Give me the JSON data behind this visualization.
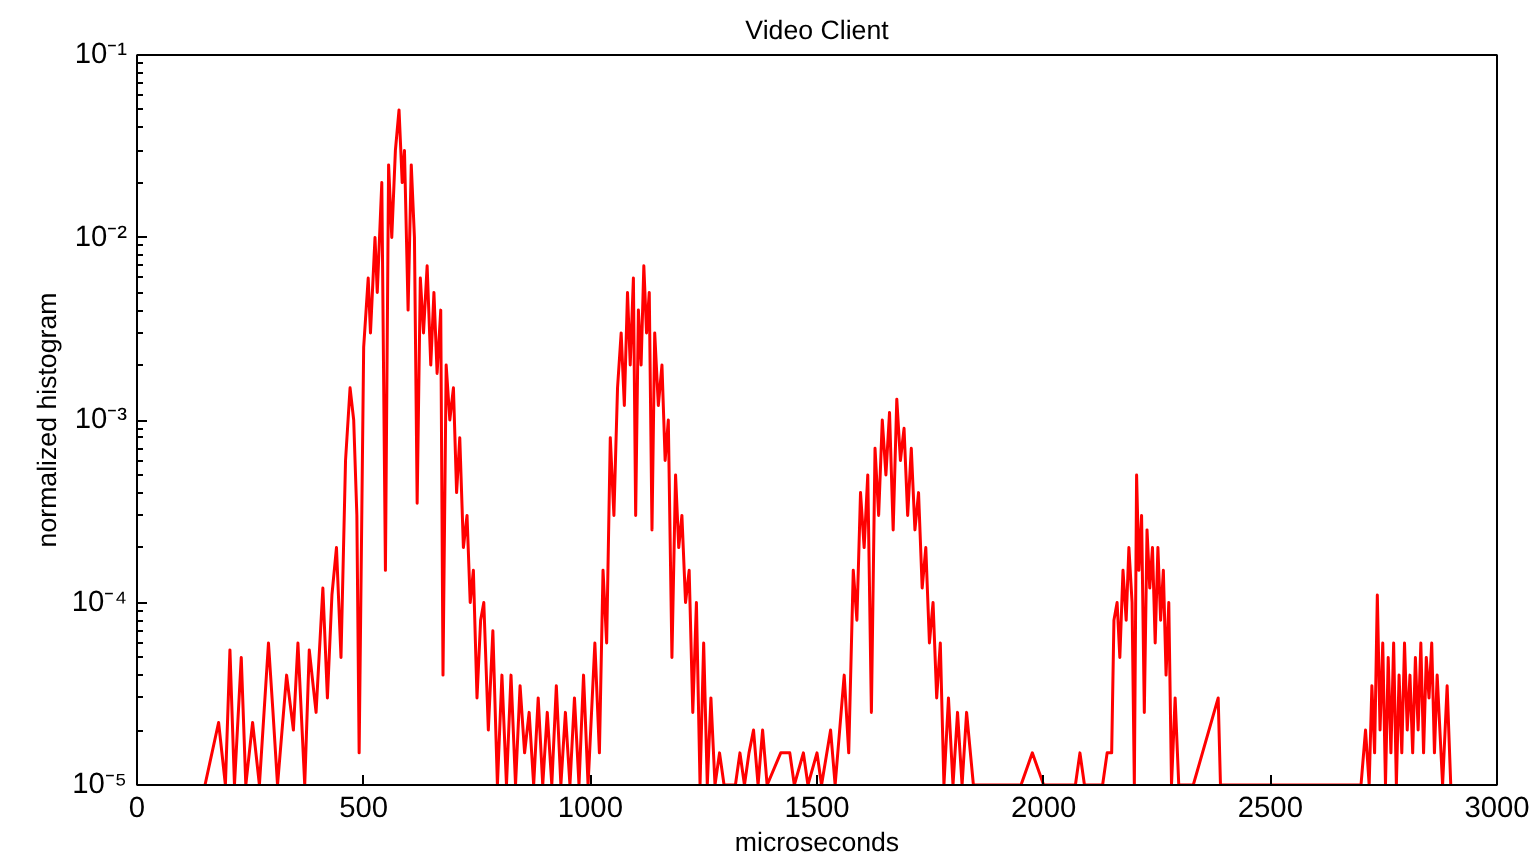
{
  "chart_data": {
    "type": "line",
    "title": "Video Client",
    "xlabel": "microseconds",
    "ylabel": "normalized histogram",
    "log": "y",
    "grid": false,
    "marker": "none",
    "line_style": "solid",
    "xlim": [
      0,
      3000
    ],
    "xticks": [
      0,
      500,
      1000,
      1500,
      2000,
      2500,
      3000
    ],
    "ylim": [
      1e-05,
      0.1
    ],
    "yticks": [
      {
        "value": 1e-05,
        "label": "10⁻⁵"
      },
      {
        "value": 0.0001,
        "label": "10⁻⁴"
      },
      {
        "value": 0.001,
        "label": "10⁻³"
      },
      {
        "value": 0.01,
        "label": "10⁻²"
      },
      {
        "value": 0.1,
        "label": "10⁻¹"
      }
    ],
    "series": [
      {
        "color": "#ff0000",
        "x": [
          150,
          180,
          195,
          205,
          215,
          230,
          240,
          255,
          270,
          290,
          300,
          310,
          330,
          345,
          355,
          370,
          380,
          395,
          410,
          420,
          430,
          440,
          450,
          460,
          470,
          478,
          485,
          490,
          500,
          510,
          515,
          525,
          530,
          540,
          548,
          555,
          562,
          570,
          578,
          585,
          590,
          598,
          605,
          612,
          618,
          625,
          632,
          640,
          648,
          655,
          662,
          670,
          675,
          682,
          690,
          698,
          705,
          712,
          720,
          728,
          735,
          742,
          750,
          758,
          765,
          775,
          785,
          795,
          805,
          815,
          825,
          835,
          845,
          855,
          865,
          875,
          885,
          895,
          905,
          915,
          925,
          935,
          945,
          955,
          965,
          975,
          985,
          995,
          1010,
          1020,
          1028,
          1036,
          1044,
          1052,
          1060,
          1068,
          1075,
          1082,
          1088,
          1095,
          1100,
          1106,
          1112,
          1118,
          1124,
          1130,
          1136,
          1142,
          1150,
          1158,
          1165,
          1172,
          1180,
          1188,
          1195,
          1202,
          1210,
          1218,
          1226,
          1234,
          1242,
          1250,
          1258,
          1266,
          1275,
          1285,
          1295,
          1320,
          1330,
          1340,
          1350,
          1360,
          1370,
          1380,
          1390,
          1420,
          1440,
          1450,
          1470,
          1480,
          1500,
          1510,
          1530,
          1540,
          1560,
          1570,
          1580,
          1588,
          1596,
          1604,
          1612,
          1620,
          1628,
          1636,
          1644,
          1652,
          1660,
          1668,
          1676,
          1684,
          1692,
          1700,
          1708,
          1716,
          1724,
          1732,
          1740,
          1748,
          1756,
          1764,
          1772,
          1780,
          1790,
          1800,
          1810,
          1820,
          1830,
          1845,
          1950,
          1975,
          2000,
          2070,
          2080,
          2090,
          2130,
          2140,
          2150,
          2155,
          2162,
          2168,
          2175,
          2182,
          2188,
          2195,
          2200,
          2205,
          2210,
          2216,
          2222,
          2228,
          2234,
          2240,
          2246,
          2252,
          2258,
          2264,
          2270,
          2276,
          2282,
          2290,
          2298,
          2310,
          2320,
          2330,
          2385,
          2390,
          2700,
          2710,
          2718,
          2724,
          2730,
          2736,
          2742,
          2748,
          2754,
          2760,
          2766,
          2772,
          2778,
          2784,
          2790,
          2796,
          2802,
          2808,
          2814,
          2820,
          2826,
          2832,
          2838,
          2844,
          2850,
          2856,
          2862,
          2868,
          2874,
          2880,
          2890,
          2898
        ],
        "values": [
          1e-05,
          2.2e-05,
          1e-05,
          5.5e-05,
          1e-05,
          5e-05,
          1e-05,
          2.2e-05,
          1e-05,
          6e-05,
          2.5e-05,
          1e-05,
          4e-05,
          2e-05,
          6e-05,
          1e-05,
          5.5e-05,
          2.5e-05,
          0.00012,
          3e-05,
          0.00011,
          0.0002,
          5e-05,
          0.0006,
          0.0015,
          0.001,
          0.0003,
          1.5e-05,
          0.0025,
          0.006,
          0.003,
          0.01,
          0.005,
          0.02,
          0.00015,
          0.025,
          0.01,
          0.03,
          0.05,
          0.02,
          0.03,
          0.004,
          0.025,
          0.01,
          0.00035,
          0.006,
          0.003,
          0.007,
          0.002,
          0.005,
          0.0018,
          0.004,
          4e-05,
          0.002,
          0.001,
          0.0015,
          0.0004,
          0.0008,
          0.0002,
          0.0003,
          0.0001,
          0.00015,
          3e-05,
          8e-05,
          0.0001,
          2e-05,
          7e-05,
          1e-05,
          4e-05,
          1e-05,
          4e-05,
          1e-05,
          3.5e-05,
          1.5e-05,
          2.5e-05,
          1e-05,
          3e-05,
          1e-05,
          2.5e-05,
          1e-05,
          3.5e-05,
          1e-05,
          2.5e-05,
          1e-05,
          3e-05,
          1e-05,
          4e-05,
          1e-05,
          6e-05,
          1.5e-05,
          0.00015,
          6e-05,
          0.0008,
          0.0003,
          0.0015,
          0.003,
          0.0012,
          0.005,
          0.002,
          0.006,
          0.0003,
          0.004,
          0.002,
          0.007,
          0.003,
          0.005,
          0.00025,
          0.003,
          0.0012,
          0.002,
          0.0006,
          0.001,
          5e-05,
          0.0005,
          0.0002,
          0.0003,
          0.0001,
          0.00015,
          2.5e-05,
          0.0001,
          1e-05,
          6e-05,
          1e-05,
          3e-05,
          1e-05,
          1.5e-05,
          1e-05,
          1e-05,
          1.5e-05,
          1e-05,
          1.5e-05,
          2e-05,
          1e-05,
          2e-05,
          1e-05,
          1.5e-05,
          1.5e-05,
          1e-05,
          1.5e-05,
          1e-05,
          1.5e-05,
          1e-05,
          2e-05,
          1e-05,
          4e-05,
          1.5e-05,
          0.00015,
          8e-05,
          0.0004,
          0.0002,
          0.0005,
          2.5e-05,
          0.0007,
          0.0003,
          0.001,
          0.0005,
          0.0011,
          0.00025,
          0.0013,
          0.0006,
          0.0009,
          0.0003,
          0.0007,
          0.00025,
          0.0004,
          0.00012,
          0.0002,
          6e-05,
          0.0001,
          3e-05,
          6e-05,
          1e-05,
          3e-05,
          1e-05,
          2.5e-05,
          1e-05,
          2.5e-05,
          1e-05,
          1e-05,
          1.5e-05,
          1e-05,
          1e-05,
          1.5e-05,
          1e-05,
          1e-05,
          1.5e-05,
          1.5e-05,
          8e-05,
          0.0001,
          5e-05,
          0.00015,
          8e-05,
          0.0002,
          0.0001,
          1e-05,
          0.0005,
          0.00015,
          0.0003,
          2.5e-05,
          0.00025,
          0.00012,
          0.0002,
          6e-05,
          0.0002,
          8e-05,
          0.00015,
          4e-05,
          0.0001,
          1e-05,
          3e-05,
          1e-05,
          1e-05,
          1e-05,
          1e-05,
          3e-05,
          1e-05,
          1e-05,
          2e-05,
          1e-05,
          3.5e-05,
          1.5e-05,
          0.00011,
          2e-05,
          6e-05,
          1e-05,
          5e-05,
          1.5e-05,
          6e-05,
          1e-05,
          4e-05,
          1.5e-05,
          6e-05,
          2e-05,
          4e-05,
          1.5e-05,
          5e-05,
          2e-05,
          6e-05,
          1.5e-05,
          5e-05,
          3e-05,
          6e-05,
          1.5e-05,
          4e-05,
          2e-05,
          1e-05,
          3.5e-05,
          1e-05
        ]
      }
    ]
  }
}
